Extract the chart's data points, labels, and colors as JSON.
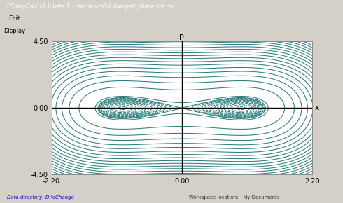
{
  "xlim": [
    -2.2,
    2.2
  ],
  "ylim": [
    -4.5,
    4.5
  ],
  "xlabel": "x",
  "ylabel": "p",
  "x_ticks": [
    -2.2,
    0.0,
    2.2
  ],
  "y_ticks": [
    -4.5,
    0.0,
    4.5
  ],
  "line_color": "#2e7d7d",
  "bg_color": "#ffffff",
  "grid_color": "#ccdddd",
  "axis_color": "#000000",
  "figsize": [
    4.9,
    2.9
  ],
  "dpi": 100,
  "window_title": "CSharpCalc v1.0 beta 1 - mechanics1d_damped_phaseplot.csc",
  "status_left": "Data directory: D:\\cChange",
  "status_right": "Workspace location:   My Documents",
  "menu_label": "Edit",
  "display_label": "Display"
}
